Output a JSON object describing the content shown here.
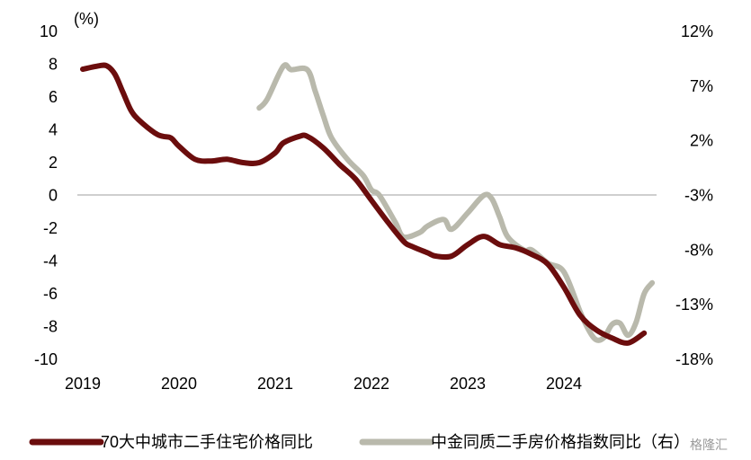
{
  "chart_data": {
    "type": "line",
    "title": "",
    "y_unit_label": "(%)",
    "x_ticks": [
      "2019",
      "2020",
      "2021",
      "2022",
      "2023",
      "2024"
    ],
    "y_left": {
      "ticks": [
        "10",
        "8",
        "6",
        "4",
        "2",
        "0",
        "-2",
        "-4",
        "-6",
        "-8",
        "-10"
      ],
      "range": [
        -10,
        10
      ]
    },
    "y_right": {
      "ticks": [
        "12%",
        "7%",
        "2%",
        "-3%",
        "-8%",
        "-13%",
        "-18%"
      ],
      "range": [
        -18,
        12
      ]
    },
    "grid": false,
    "zero_line": true,
    "legend_position": "bottom",
    "series": [
      {
        "name": "70大中城市二手住宅价格同比",
        "axis": "left",
        "color": "#6b0d0d",
        "points": [
          [
            "2019-01",
            7.7
          ],
          [
            "2019-03",
            7.9
          ],
          [
            "2019-04",
            7.9
          ],
          [
            "2019-05",
            7.4
          ],
          [
            "2019-06",
            6.3
          ],
          [
            "2019-07",
            5.2
          ],
          [
            "2019-08",
            4.6
          ],
          [
            "2019-10",
            3.8
          ],
          [
            "2019-11",
            3.6
          ],
          [
            "2019-12",
            3.5
          ],
          [
            "2020-01",
            3.0
          ],
          [
            "2020-03",
            2.2
          ],
          [
            "2020-05",
            2.1
          ],
          [
            "2020-07",
            2.2
          ],
          [
            "2020-09",
            2.0
          ],
          [
            "2020-11",
            2.0
          ],
          [
            "2021-01",
            2.6
          ],
          [
            "2021-02",
            3.2
          ],
          [
            "2021-04",
            3.6
          ],
          [
            "2021-05",
            3.6
          ],
          [
            "2021-07",
            2.9
          ],
          [
            "2021-09",
            1.9
          ],
          [
            "2021-11",
            1.0
          ],
          [
            "2022-01",
            -0.3
          ],
          [
            "2022-03",
            -1.6
          ],
          [
            "2022-05",
            -2.8
          ],
          [
            "2022-06",
            -3.1
          ],
          [
            "2022-08",
            -3.5
          ],
          [
            "2022-09",
            -3.7
          ],
          [
            "2022-11",
            -3.7
          ],
          [
            "2023-01",
            -3.0
          ],
          [
            "2023-03",
            -2.5
          ],
          [
            "2023-05",
            -3.0
          ],
          [
            "2023-07",
            -3.2
          ],
          [
            "2023-09",
            -3.6
          ],
          [
            "2023-11",
            -4.2
          ],
          [
            "2024-01",
            -5.6
          ],
          [
            "2024-03",
            -7.3
          ],
          [
            "2024-05",
            -8.2
          ],
          [
            "2024-07",
            -8.7
          ],
          [
            "2024-09",
            -9.0
          ],
          [
            "2024-11",
            -8.4
          ]
        ]
      },
      {
        "name": "中金同质二手房价格指数同比（右）",
        "axis": "right",
        "color": "#b9b9ac",
        "points": [
          [
            "2020-11",
            5.0
          ],
          [
            "2020-12",
            5.8
          ],
          [
            "2021-02",
            8.8
          ],
          [
            "2021-03",
            8.5
          ],
          [
            "2021-05",
            8.5
          ],
          [
            "2021-06",
            6.5
          ],
          [
            "2021-07",
            4.3
          ],
          [
            "2021-08",
            2.3
          ],
          [
            "2021-10",
            0.3
          ],
          [
            "2021-12",
            -1.2
          ],
          [
            "2022-01",
            -2.5
          ],
          [
            "2022-02",
            -3.0
          ],
          [
            "2022-04",
            -5.5
          ],
          [
            "2022-05",
            -6.8
          ],
          [
            "2022-07",
            -6.4
          ],
          [
            "2022-08",
            -5.8
          ],
          [
            "2022-10",
            -5.2
          ],
          [
            "2022-11",
            -6.1
          ],
          [
            "2023-01",
            -4.6
          ],
          [
            "2023-03",
            -3.0
          ],
          [
            "2023-04",
            -3.3
          ],
          [
            "2023-05",
            -5.0
          ],
          [
            "2023-06",
            -6.8
          ],
          [
            "2023-08",
            -8.0
          ],
          [
            "2023-09",
            -8.0
          ],
          [
            "2023-11",
            -9.2
          ],
          [
            "2024-01",
            -10.0
          ],
          [
            "2024-03",
            -13.6
          ],
          [
            "2024-04",
            -15.2
          ],
          [
            "2024-05",
            -16.2
          ],
          [
            "2024-06",
            -16.0
          ],
          [
            "2024-07",
            -14.8
          ],
          [
            "2024-08",
            -14.7
          ],
          [
            "2024-09",
            -15.8
          ],
          [
            "2024-10",
            -14.6
          ],
          [
            "2024-11",
            -12.0
          ],
          [
            "2024-12",
            -11.0
          ]
        ]
      }
    ]
  },
  "watermark": "格隆汇"
}
